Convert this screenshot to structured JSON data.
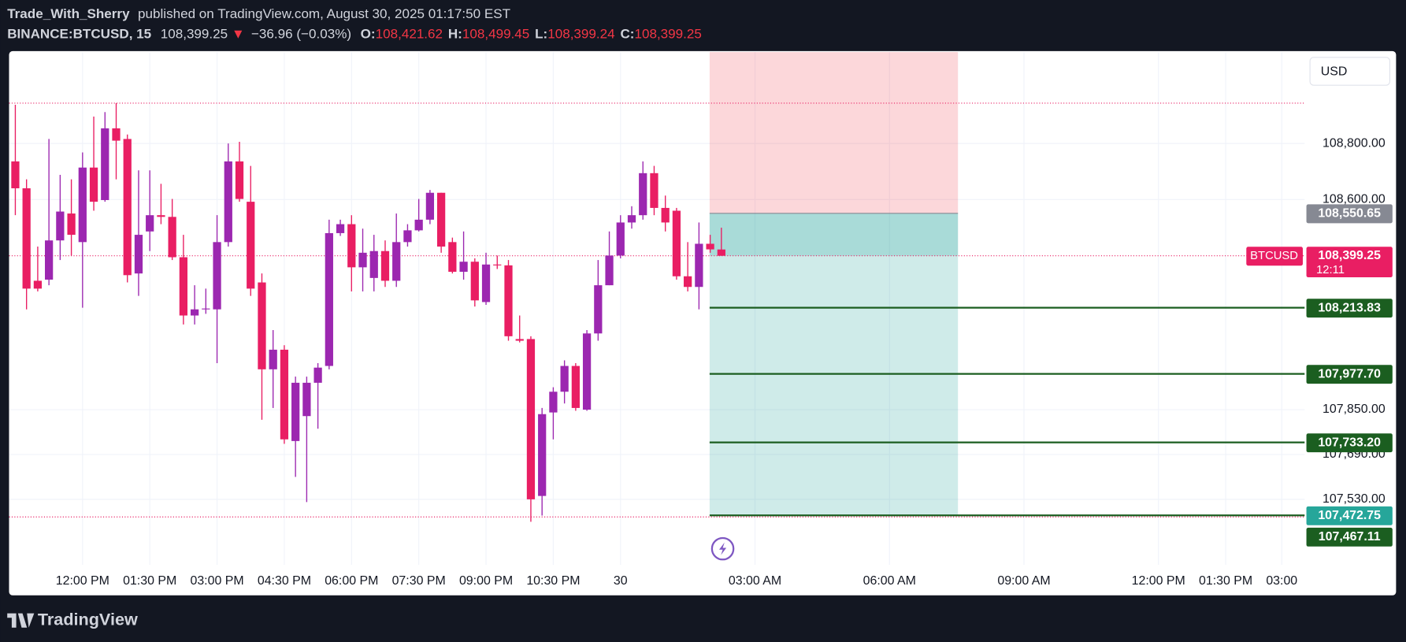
{
  "header": {
    "author": "Trade_With_Sherry",
    "published": "published on TradingView.com, August 30, 2025 01:17:50 EST",
    "symbol": "BINANCE:BTCUSD, 15",
    "last": "108,399.25",
    "change": "−36.96 (−0.03%)",
    "ohlc": [
      {
        "key": "O:",
        "value": "108,421.62"
      },
      {
        "key": "H:",
        "value": "108,499.45"
      },
      {
        "key": "L:",
        "value": "108,399.24"
      },
      {
        "key": "C:",
        "value": "108,399.25"
      }
    ]
  },
  "chart_data": {
    "type": "candlestick",
    "currency": "USD",
    "symbol_label": "BTCUSD",
    "countdown": "12:11",
    "up_color": "#9c27b0",
    "down_color": "#e91e63",
    "profit_color": "#26a69a",
    "loss_color": "#f23645",
    "target_color": "#1b5e20",
    "entry_color": "#868993",
    "open": [
      108736,
      108640,
      108310,
      108314,
      108454,
      108550,
      108448,
      108714,
      108598,
      108854,
      108816,
      108336,
      108486,
      108544,
      108538,
      108394,
      108186,
      108208,
      108208,
      108448,
      108736,
      108592,
      108304,
      107994,
      108064,
      107738,
      107827,
      107946,
      108006,
      108480,
      108512,
      108358,
      108320,
      108416,
      108310,
      108448,
      108490,
      108528,
      108624,
      108448,
      108342,
      108378,
      108234,
      108368,
      108365,
      108102,
      108102,
      107542,
      107840,
      107914,
      108006,
      107850,
      108122,
      108294,
      108400,
      108518,
      108544,
      108694,
      108570,
      108560,
      108326,
      108288,
      108442,
      108421.62
    ],
    "high": [
      108938,
      108672,
      108432,
      108816,
      108688,
      108672,
      108768,
      108896,
      108912,
      108944,
      108832,
      108704,
      108704,
      108656,
      108602,
      108474,
      108294,
      108282,
      108544,
      108800,
      108806,
      108720,
      108336,
      108134,
      108080,
      107968,
      107968,
      108016,
      108528,
      108528,
      108544,
      108496,
      108474,
      108454,
      108550,
      108512,
      108602,
      108634,
      108624,
      108464,
      108486,
      108390,
      108410,
      108400,
      108384,
      108186,
      108112,
      107856,
      107930,
      108026,
      108016,
      108134,
      108384,
      108486,
      108544,
      108576,
      108736,
      108720,
      108614,
      108570,
      108448,
      108518,
      108474,
      108499.45
    ],
    "low": [
      108544,
      108208,
      108272,
      108294,
      108384,
      108400,
      108214,
      108560,
      108592,
      108672,
      108304,
      108256,
      108416,
      108512,
      108384,
      108154,
      108154,
      108192,
      108016,
      108432,
      108592,
      108256,
      107814,
      107856,
      107728,
      107610,
      107520,
      107782,
      107994,
      108470,
      108272,
      108272,
      108272,
      108288,
      108288,
      108432,
      108486,
      108512,
      108410,
      108336,
      108314,
      108218,
      108224,
      108352,
      108096,
      108090,
      107450,
      107472,
      107744,
      107872,
      107846,
      107846,
      108096,
      108294,
      108390,
      108496,
      108528,
      108544,
      108486,
      108314,
      108272,
      108208,
      108410,
      108399.24
    ],
    "close": [
      108640,
      108282,
      108282,
      108454,
      108557,
      108474,
      108714,
      108592,
      108854,
      108810,
      108330,
      108474,
      108544,
      108538,
      108394,
      108186,
      108208,
      108211,
      108448,
      108736,
      108602,
      108282,
      107994,
      108064,
      107744,
      107946,
      107946,
      108000,
      108480,
      108512,
      108358,
      108410,
      108416,
      108310,
      108448,
      108490,
      108528,
      108624,
      108432,
      108342,
      108378,
      108240,
      108368,
      108365,
      108112,
      108096,
      107530,
      107834,
      107914,
      108006,
      107856,
      108122,
      108294,
      108400,
      108518,
      108544,
      108694,
      108570,
      108518,
      108326,
      108288,
      108442,
      108422,
      108399.25
    ],
    "xlim": [
      -0.56,
      115.04
    ],
    "xticks": [
      {
        "value": 6,
        "label": "12:00 PM"
      },
      {
        "value": 12,
        "label": "01:30 PM"
      },
      {
        "value": 18,
        "label": "03:00 PM"
      },
      {
        "value": 24,
        "label": "04:30 PM"
      },
      {
        "value": 30,
        "label": "06:00 PM"
      },
      {
        "value": 36,
        "label": "07:30 PM"
      },
      {
        "value": 42,
        "label": "09:00 PM"
      },
      {
        "value": 48,
        "label": "10:30 PM"
      },
      {
        "value": 54,
        "label": "30"
      },
      {
        "value": 66,
        "label": "03:00 AM"
      },
      {
        "value": 78,
        "label": "06:00 AM"
      },
      {
        "value": 90,
        "label": "09:00 AM"
      },
      {
        "value": 102,
        "label": "12:00 PM"
      },
      {
        "value": 108,
        "label": "01:30 PM"
      },
      {
        "value": 113,
        "label": "03:00"
      }
    ],
    "ylim": [
      107296,
      109126.4
    ],
    "yticks": [
      {
        "value": 108800,
        "label": "108,800.00"
      },
      {
        "value": 108600,
        "label": "108,600.00"
      },
      {
        "value": 107850,
        "label": "107,850.00"
      },
      {
        "value": 107690,
        "label": "107,690.00"
      },
      {
        "value": 107530,
        "label": "107,530.00"
      }
    ],
    "last_price": {
      "value": 108399.25,
      "label": "108,399.25"
    },
    "entry": {
      "value": 108550.65,
      "label": "108,550.65"
    },
    "targets": [
      {
        "value": 108213.83,
        "label": "108,213.83"
      },
      {
        "value": 107977.7,
        "label": "107,977.70"
      },
      {
        "value": 107733.2,
        "label": "107,733.20"
      },
      {
        "value": 107472.75,
        "label": "107,472.75"
      }
    ],
    "session_low": {
      "value": 107467.11,
      "label": "107,467.11"
    }
  },
  "footer": {
    "brand": "TradingView"
  }
}
